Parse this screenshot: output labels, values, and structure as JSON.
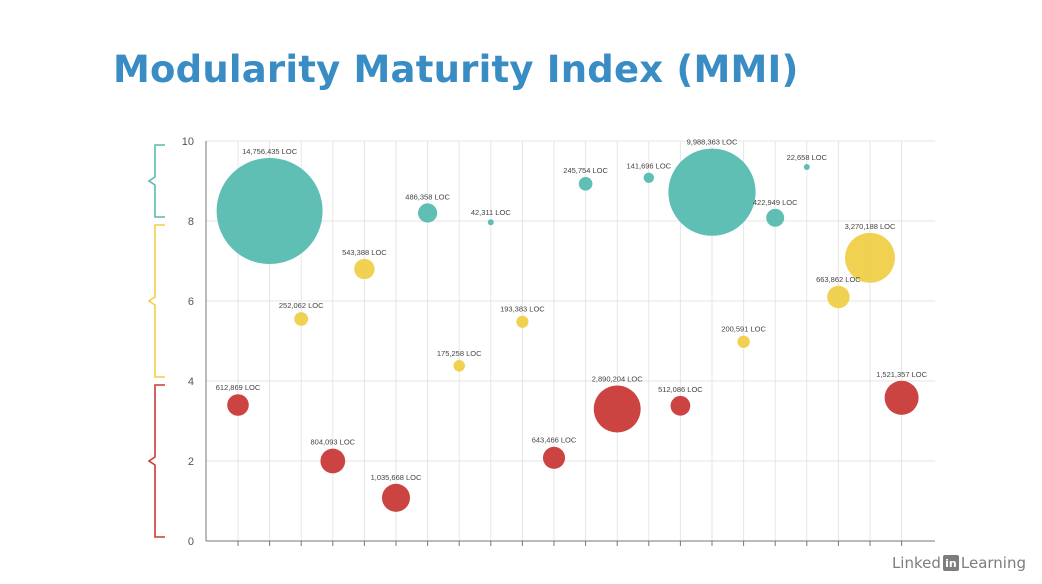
{
  "slide": {
    "title": "Modularity Maturity Index (MMI)"
  },
  "watermark": {
    "before": "Linked",
    "badge": "in",
    "after": "Learning"
  },
  "chart_data": {
    "type": "scatter",
    "title": "",
    "xlabel": "",
    "ylabel": "",
    "ylim": [
      0,
      10
    ],
    "yticks": [
      0,
      2,
      4,
      6,
      8,
      10
    ],
    "grid": true,
    "colors": {
      "green": "#56bcb0",
      "yellow": "#f0cf48",
      "red": "#c93a38"
    },
    "bands": [
      {
        "range": [
          8,
          10
        ],
        "color": "#56bcb0"
      },
      {
        "range": [
          4,
          8
        ],
        "color": "#f0cf48"
      },
      {
        "range": [
          0,
          4
        ],
        "color": "#c93a38"
      }
    ],
    "points": [
      {
        "x": 1,
        "y": 3.4,
        "loc": 612869,
        "label": "612,869 LOC",
        "color": "red"
      },
      {
        "x": 2,
        "y": 8.25,
        "loc": 14756435,
        "label": "14,756,435 LOC",
        "color": "green"
      },
      {
        "x": 3,
        "y": 5.55,
        "loc": 252062,
        "label": "252,062 LOC",
        "color": "yellow"
      },
      {
        "x": 4,
        "y": 2.0,
        "loc": 804093,
        "label": "804,093 LOC",
        "color": "red"
      },
      {
        "x": 5,
        "y": 6.8,
        "loc": 543388,
        "label": "543,388 LOC",
        "color": "yellow"
      },
      {
        "x": 6,
        "y": 1.08,
        "loc": 1035668,
        "label": "1,035,668 LOC",
        "color": "red"
      },
      {
        "x": 7,
        "y": 8.2,
        "loc": 486358,
        "label": "486,358 LOC",
        "color": "green"
      },
      {
        "x": 8,
        "y": 4.38,
        "loc": 175258,
        "label": "175,258 LOC",
        "color": "yellow"
      },
      {
        "x": 9,
        "y": 7.97,
        "loc": 42311,
        "label": "42,311 LOC",
        "color": "green"
      },
      {
        "x": 10,
        "y": 5.48,
        "loc": 193383,
        "label": "193,383 LOC",
        "color": "yellow"
      },
      {
        "x": 11,
        "y": 2.08,
        "loc": 643466,
        "label": "643,466 LOC",
        "color": "red"
      },
      {
        "x": 12,
        "y": 8.93,
        "loc": 245754,
        "label": "245,754 LOC",
        "color": "green"
      },
      {
        "x": 13,
        "y": 3.3,
        "loc": 2890204,
        "label": "2,890,204 LOC",
        "color": "red"
      },
      {
        "x": 14,
        "y": 9.08,
        "loc": 141696,
        "label": "141,696 LOC",
        "color": "green"
      },
      {
        "x": 15,
        "y": 3.38,
        "loc": 512086,
        "label": "512,086 LOC",
        "color": "red"
      },
      {
        "x": 16,
        "y": 8.72,
        "loc": 9988363,
        "label": "9,988,363 LOC",
        "color": "green"
      },
      {
        "x": 17,
        "y": 4.98,
        "loc": 200591,
        "label": "200,591 LOC",
        "color": "yellow"
      },
      {
        "x": 18,
        "y": 8.08,
        "loc": 422949,
        "label": "422,949 LOC",
        "color": "green"
      },
      {
        "x": 19,
        "y": 9.35,
        "loc": 22658,
        "label": "22,658 LOC",
        "color": "green"
      },
      {
        "x": 20,
        "y": 6.1,
        "loc": 663862,
        "label": "663,862 LOC",
        "color": "yellow"
      },
      {
        "x": 21,
        "y": 7.08,
        "loc": 3270188,
        "label": "3,270,188 LOC",
        "color": "yellow"
      },
      {
        "x": 22,
        "y": 3.58,
        "loc": 1521357,
        "label": "1,521,357 LOC",
        "color": "red"
      }
    ]
  }
}
